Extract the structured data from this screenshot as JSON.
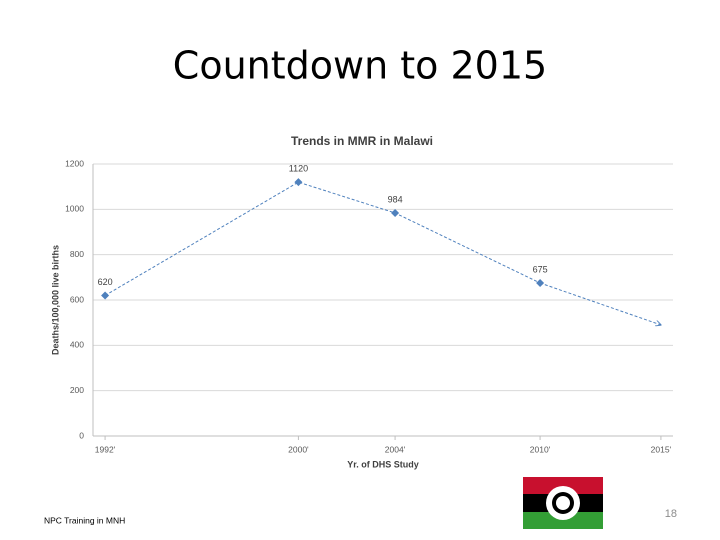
{
  "title": "Countdown to 2015",
  "chart_data": {
    "type": "line",
    "title": "Trends in MMR in Malawi",
    "x_label": "Yr. of DHS Study",
    "y_label": "Deaths/100,000 live births",
    "x": [
      1992,
      2000,
      2004,
      2010
    ],
    "series": [
      {
        "color": "#4f81bd",
        "values": [
          620,
          1120,
          984,
          675
        ]
      }
    ],
    "projection": {
      "x": 2015,
      "value": 490
    },
    "xlim": [
      1991.5,
      2015.5
    ],
    "xticks": [
      {
        "value": 1992,
        "label": "1992'"
      },
      {
        "value": 2000,
        "label": "2000'"
      },
      {
        "value": 2004,
        "label": "2004'"
      },
      {
        "value": 2010,
        "label": "2010'"
      },
      {
        "value": 2015,
        "label": "2015'"
      }
    ],
    "ylim": [
      0,
      1200
    ],
    "yticks": [
      0,
      200,
      400,
      600,
      800,
      1000,
      1200
    ],
    "grid": true
  },
  "footer": "NPC Training in MNH",
  "page_number": "18"
}
